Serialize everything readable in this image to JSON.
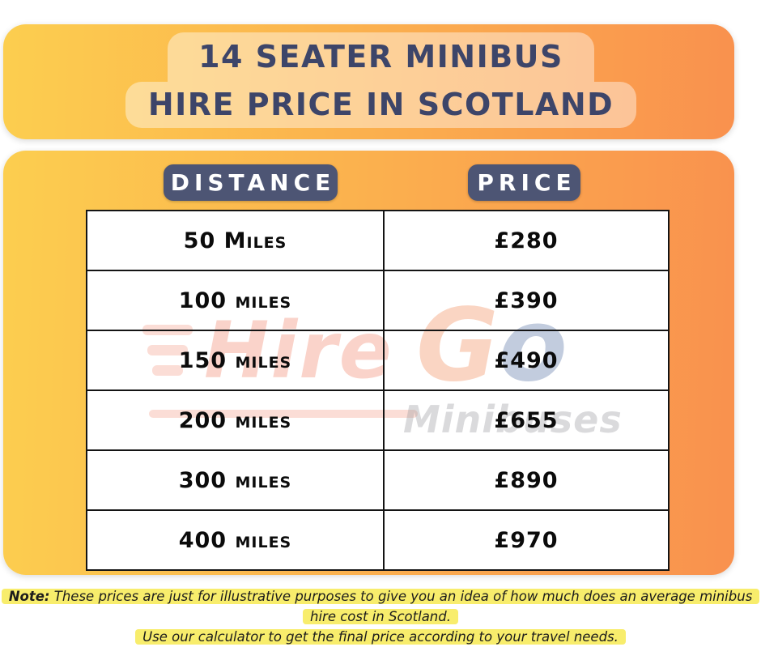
{
  "header": {
    "title_line1": "14 SEATER MINIBUS",
    "title_line2": "HIRE PRICE IN SCOTLAND"
  },
  "table": {
    "distance_header": "DISTANCE",
    "price_header": "PRICE",
    "rows": [
      {
        "distance": "50 Miles",
        "price": "£280"
      },
      {
        "distance": "100 miles",
        "price": "£390"
      },
      {
        "distance": "150 miles",
        "price": "£490"
      },
      {
        "distance": "200 miles",
        "price": "£655"
      },
      {
        "distance": "300 miles",
        "price": "£890"
      },
      {
        "distance": "400 miles",
        "price": "£970"
      }
    ]
  },
  "watermark": {
    "hire": "Hire",
    "go_g": "G",
    "go_o": "o",
    "minibuses": "Minibuses"
  },
  "note": {
    "label": "Note:",
    "line1": "These prices are just for illustrative purposes to give you an idea of how much does an average minibus hire cost in Scotland.",
    "line2": "Use our calculator to get the final price according to your travel needs."
  },
  "colors": {
    "gradient_start": "#FCCE4F",
    "gradient_end": "#F9914E",
    "badge_background": "#4D5574",
    "title_text": "#3D4569",
    "table_border": "#141414",
    "note_highlight": "#F8ED6C",
    "watermark_orange": "#EA5532",
    "watermark_blue": "#506EA0",
    "watermark_gray": "#969697"
  },
  "chart_data": {
    "type": "table",
    "title": "14 Seater Minibus Hire Price in Scotland",
    "columns": [
      "Distance",
      "Price"
    ],
    "categories": [
      "50 Miles",
      "100 miles",
      "150 miles",
      "200 miles",
      "300 miles",
      "400 miles"
    ],
    "values": [
      280,
      390,
      490,
      655,
      890,
      970
    ],
    "currency": "£",
    "note": "Prices are illustrative averages for minibus hire in Scotland; use the calculator for a final price."
  }
}
